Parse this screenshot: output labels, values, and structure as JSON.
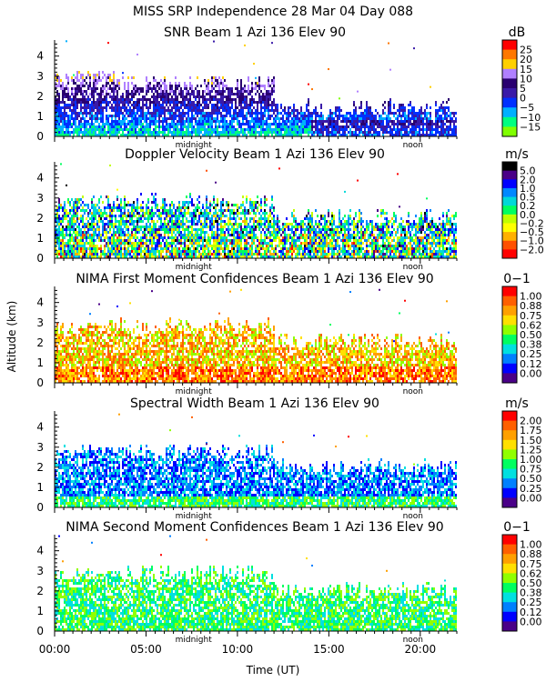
{
  "chart_data": {
    "type": "heatmap",
    "title_line1": "MISS SRP Independence  28 Mar 04 Day 088",
    "xlabel": "Time (UT)",
    "ylabel": "Altitude (km)",
    "xticks": [
      "00:00",
      "05:00",
      "10:00",
      "15:00",
      "20:00"
    ],
    "xlim_hours": [
      0,
      22
    ],
    "x_markers": [
      {
        "label": "midnight",
        "hour": 7.6
      },
      {
        "label": "noon",
        "hour": 19.6
      }
    ],
    "ylim_km": [
      0,
      4.8
    ],
    "yticks": [
      "0",
      "1",
      "2",
      "3",
      "4"
    ],
    "panels": [
      {
        "title": "SNR Beam 1 Azi 136 Elev 90",
        "unit": "dB",
        "colorbar_labels": [
          "25",
          "20",
          "15",
          "10",
          "5",
          "0",
          "−5",
          "−10",
          "−15"
        ],
        "colors": [
          "#ff0000",
          "#ff7700",
          "#ffd000",
          "#b080ff",
          "#2a0070",
          "#3a1aa8",
          "#0030ff",
          "#00b0ff",
          "#00ff80",
          "#80ff00"
        ],
        "layer_height_km": [
          2.6,
          1.8,
          1.0
        ]
      },
      {
        "title": "Doppler Velocity Beam 1 Azi 136 Elev 90",
        "unit": "m/s",
        "colorbar_labels": [
          "5.0",
          "2.0",
          "1.0",
          "0.5",
          "0.2",
          "0.0",
          "−0.2",
          "−0.5",
          "−1.0",
          "−2.0"
        ],
        "colors": [
          "#000000",
          "#4a0088",
          "#0000ff",
          "#0088ff",
          "#00d8d8",
          "#00ff60",
          "#c0ff00",
          "#ffff00",
          "#ffb000",
          "#ff5000",
          "#ff0000"
        ],
        "layer_height_km": [
          2.4,
          2.0,
          1.6
        ]
      },
      {
        "title": "NIMA First Moment Confidences Beam 1 Azi 136 Elev 90",
        "unit": "0−1",
        "colorbar_labels": [
          "1.00",
          "0.88",
          "0.75",
          "0.62",
          "0.50",
          "0.38",
          "0.25",
          "0.12",
          "0.00"
        ],
        "colors": [
          "#ff0000",
          "#ff6000",
          "#ffa000",
          "#ffe000",
          "#90ff00",
          "#00ff60",
          "#00e0e0",
          "#0080ff",
          "#0000ff",
          "#4a0088"
        ],
        "layer_height_km": [
          2.4,
          2.0,
          1.6
        ]
      },
      {
        "title": "Spectral Width Beam 1 Azi 136 Elev 90",
        "unit": "m/s",
        "colorbar_labels": [
          "2.00",
          "1.75",
          "1.50",
          "1.25",
          "1.00",
          "0.75",
          "0.50",
          "0.25",
          "0.00"
        ],
        "colors": [
          "#ff0000",
          "#ff6000",
          "#ffa000",
          "#ffe000",
          "#90ff00",
          "#00ff60",
          "#00e0e0",
          "#0080ff",
          "#0000ff",
          "#4a0088"
        ],
        "layer_height_km": [
          2.4,
          2.0,
          1.6
        ]
      },
      {
        "title": "NIMA Second Moment Confidences Beam 1 Azi 136 Elev 90",
        "unit": "0−1",
        "colorbar_labels": [
          "1.00",
          "0.88",
          "0.75",
          "0.62",
          "0.50",
          "0.38",
          "0.25",
          "0.12",
          "0.00"
        ],
        "colors": [
          "#ff0000",
          "#ff6000",
          "#ffa000",
          "#ffe000",
          "#90ff00",
          "#00ff60",
          "#00e0e0",
          "#0080ff",
          "#0000ff",
          "#4a0088"
        ],
        "layer_height_km": [
          2.4,
          2.0,
          1.6
        ]
      }
    ]
  }
}
